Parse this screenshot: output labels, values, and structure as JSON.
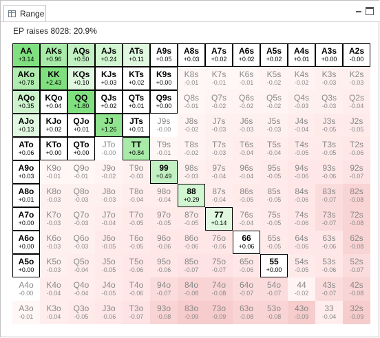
{
  "tab": {
    "title": "Range",
    "icon": "grid-window-icon"
  },
  "subtitle": "EP raises 8028: 20.9%",
  "colors": {
    "green_strong": "#80e080",
    "green_light": "#d2f5d2",
    "white": "#ffffff",
    "red_light": "#fdeeee",
    "red_mid": "#fbdcdc",
    "red_strong": "#f7cccc"
  },
  "grid": {
    "rows": [
      [
        {
          "hand": "AA",
          "ev": "+3.14",
          "full": true,
          "bg": "#80e080"
        },
        {
          "hand": "AKs",
          "ev": "+0.96",
          "full": true,
          "bg": "#a8eaa8"
        },
        {
          "hand": "AQs",
          "ev": "+0.50",
          "full": true,
          "bg": "#c2f0c2"
        },
        {
          "hand": "AJs",
          "ev": "+0.24",
          "full": true,
          "bg": "#d2f5d2"
        },
        {
          "hand": "ATs",
          "ev": "+0.11",
          "full": true,
          "bg": "#e0f8e0"
        },
        {
          "hand": "A9s",
          "ev": "+0.05",
          "full": true,
          "bg": "#ffffff"
        },
        {
          "hand": "A8s",
          "ev": "+0.03",
          "full": true,
          "bg": "#ffffff"
        },
        {
          "hand": "A7s",
          "ev": "+0.02",
          "full": true,
          "bg": "#ffffff"
        },
        {
          "hand": "A6s",
          "ev": "+0.02",
          "full": true,
          "bg": "#ffffff"
        },
        {
          "hand": "A5s",
          "ev": "+0.02",
          "full": true,
          "bg": "#ffffff"
        },
        {
          "hand": "A4s",
          "ev": "+0.01",
          "full": true,
          "bg": "#ffffff"
        },
        {
          "hand": "A3s",
          "ev": "+0.00",
          "full": true,
          "bg": "#ffffff"
        },
        {
          "hand": "A2s",
          "ev": "-0.00",
          "full": true,
          "bg": "#ffffff"
        }
      ],
      [
        {
          "hand": "AKo",
          "ev": "+0.78",
          "full": true,
          "bg": "#b0ecb0"
        },
        {
          "hand": "KK",
          "ev": "+2.43",
          "full": true,
          "bg": "#80e080"
        },
        {
          "hand": "KQs",
          "ev": "+0.10",
          "full": true,
          "bg": "#e0f8e0"
        },
        {
          "hand": "KJs",
          "ev": "+0.03",
          "full": true,
          "bg": "#ffffff"
        },
        {
          "hand": "KTs",
          "ev": "+0.02",
          "full": true,
          "bg": "#ffffff"
        },
        {
          "hand": "K9s",
          "ev": "+0.00",
          "full": true,
          "bg": "#ffffff"
        },
        {
          "hand": "K8s",
          "ev": "-0.01",
          "full": false,
          "bg": "#fff6f6"
        },
        {
          "hand": "K7s",
          "ev": "-0.01",
          "full": false,
          "bg": "#fff6f6"
        },
        {
          "hand": "K6s",
          "ev": "-0.01",
          "full": false,
          "bg": "#fff6f6"
        },
        {
          "hand": "K5s",
          "ev": "-0.02",
          "full": false,
          "bg": "#fff3f3"
        },
        {
          "hand": "K4s",
          "ev": "-0.02",
          "full": false,
          "bg": "#fff3f3"
        },
        {
          "hand": "K3s",
          "ev": "-0.03",
          "full": false,
          "bg": "#fff0f0"
        },
        {
          "hand": "K2s",
          "ev": "-0.03",
          "full": false,
          "bg": "#fff0f0"
        }
      ],
      [
        {
          "hand": "AQo",
          "ev": "+0.35",
          "full": true,
          "bg": "#ccf3cc"
        },
        {
          "hand": "KQo",
          "ev": "+0.04",
          "full": true,
          "bg": "#ffffff"
        },
        {
          "hand": "QQ",
          "ev": "+1.80",
          "full": true,
          "bg": "#80e080"
        },
        {
          "hand": "QJs",
          "ev": "+0.02",
          "full": true,
          "bg": "#ffffff"
        },
        {
          "hand": "QTs",
          "ev": "+0.01",
          "full": true,
          "bg": "#ffffff"
        },
        {
          "hand": "Q9s",
          "ev": "+0.00",
          "full": true,
          "bg": "#ffffff"
        },
        {
          "hand": "Q8s",
          "ev": "-0.01",
          "full": false,
          "bg": "#fff6f6"
        },
        {
          "hand": "Q7s",
          "ev": "-0.02",
          "full": false,
          "bg": "#fff3f3"
        },
        {
          "hand": "Q6s",
          "ev": "-0.02",
          "full": false,
          "bg": "#fff3f3"
        },
        {
          "hand": "Q5s",
          "ev": "-0.02",
          "full": false,
          "bg": "#fff3f3"
        },
        {
          "hand": "Q4s",
          "ev": "-0.03",
          "full": false,
          "bg": "#fff0f0"
        },
        {
          "hand": "Q3s",
          "ev": "-0.03",
          "full": false,
          "bg": "#fff0f0"
        },
        {
          "hand": "Q2s",
          "ev": "-0.04",
          "full": false,
          "bg": "#ffeded"
        }
      ],
      [
        {
          "hand": "AJo",
          "ev": "+0.13",
          "full": true,
          "bg": "#e0f8e0"
        },
        {
          "hand": "KJo",
          "ev": "+0.02",
          "full": true,
          "bg": "#ffffff"
        },
        {
          "hand": "QJo",
          "ev": "+0.01",
          "full": true,
          "bg": "#ffffff"
        },
        {
          "hand": "JJ",
          "ev": "+1.26",
          "full": true,
          "bg": "#90e490"
        },
        {
          "hand": "JTs",
          "ev": "+0.01",
          "full": true,
          "bg": "#ffffff"
        },
        {
          "hand": "J9s",
          "ev": "-0.00",
          "full": false,
          "bg": "#ffffff"
        },
        {
          "hand": "J8s",
          "ev": "-0.02",
          "full": false,
          "bg": "#fff3f3"
        },
        {
          "hand": "J7s",
          "ev": "-0.03",
          "full": false,
          "bg": "#fff0f0"
        },
        {
          "hand": "J6s",
          "ev": "-0.03",
          "full": false,
          "bg": "#fff0f0"
        },
        {
          "hand": "J5s",
          "ev": "-0.03",
          "full": false,
          "bg": "#fff0f0"
        },
        {
          "hand": "J4s",
          "ev": "-0.04",
          "full": false,
          "bg": "#ffeded"
        },
        {
          "hand": "J3s",
          "ev": "-0.05",
          "full": false,
          "bg": "#ffeaea"
        },
        {
          "hand": "J2s",
          "ev": "-0.05",
          "full": false,
          "bg": "#ffeaea"
        }
      ],
      [
        {
          "hand": "ATo",
          "ev": "+0.06",
          "full": true,
          "bg": "#ffffff"
        },
        {
          "hand": "KTo",
          "ev": "+0.00",
          "full": true,
          "bg": "#ffffff"
        },
        {
          "hand": "QTo",
          "ev": "+0.00",
          "full": true,
          "bg": "#ffffff"
        },
        {
          "hand": "JTo",
          "ev": "-0.00",
          "full": false,
          "bg": "#ffffff"
        },
        {
          "hand": "TT",
          "ev": "+0.84",
          "full": true,
          "bg": "#a8eaa8"
        },
        {
          "hand": "T9s",
          "ev": "-0.01",
          "full": false,
          "bg": "#fff6f6"
        },
        {
          "hand": "T8s",
          "ev": "-0.02",
          "full": false,
          "bg": "#fff3f3"
        },
        {
          "hand": "T7s",
          "ev": "-0.03",
          "full": false,
          "bg": "#fff0f0"
        },
        {
          "hand": "T6s",
          "ev": "-0.04",
          "full": false,
          "bg": "#ffeded"
        },
        {
          "hand": "T5s",
          "ev": "-0.04",
          "full": false,
          "bg": "#ffeded"
        },
        {
          "hand": "T4s",
          "ev": "-0.05",
          "full": false,
          "bg": "#ffeaea"
        },
        {
          "hand": "T3s",
          "ev": "-0.05",
          "full": false,
          "bg": "#ffeaea"
        },
        {
          "hand": "T2s",
          "ev": "-0.06",
          "full": false,
          "bg": "#ffe7e7"
        }
      ],
      [
        {
          "hand": "A9o",
          "ev": "+0.03",
          "full": true,
          "bg": "#ffffff"
        },
        {
          "hand": "K9o",
          "ev": "-0.01",
          "full": false,
          "bg": "#fff6f6"
        },
        {
          "hand": "Q9o",
          "ev": "-0.01",
          "full": false,
          "bg": "#fff6f6"
        },
        {
          "hand": "J9o",
          "ev": "-0.02",
          "full": false,
          "bg": "#fff3f3"
        },
        {
          "hand": "T9o",
          "ev": "-0.03",
          "full": false,
          "bg": "#fff0f0"
        },
        {
          "hand": "99",
          "ev": "+0.49",
          "full": true,
          "bg": "#c2f0c2"
        },
        {
          "hand": "98s",
          "ev": "-0.03",
          "full": false,
          "bg": "#fff0f0"
        },
        {
          "hand": "97s",
          "ev": "-0.04",
          "full": false,
          "bg": "#ffeded"
        },
        {
          "hand": "96s",
          "ev": "-0.04",
          "full": false,
          "bg": "#ffeded"
        },
        {
          "hand": "95s",
          "ev": "-0.05",
          "full": false,
          "bg": "#ffeaea"
        },
        {
          "hand": "94s",
          "ev": "-0.06",
          "full": false,
          "bg": "#ffe7e7"
        },
        {
          "hand": "93s",
          "ev": "-0.06",
          "full": false,
          "bg": "#ffe7e7"
        },
        {
          "hand": "92s",
          "ev": "-0.07",
          "full": false,
          "bg": "#fde3e3"
        }
      ],
      [
        {
          "hand": "A8o",
          "ev": "+0.01",
          "full": true,
          "bg": "#ffffff"
        },
        {
          "hand": "K8o",
          "ev": "-0.03",
          "full": false,
          "bg": "#fff0f0"
        },
        {
          "hand": "Q8o",
          "ev": "-0.03",
          "full": false,
          "bg": "#fff0f0"
        },
        {
          "hand": "J8o",
          "ev": "-0.03",
          "full": false,
          "bg": "#fff0f0"
        },
        {
          "hand": "T8o",
          "ev": "-0.04",
          "full": false,
          "bg": "#ffeded"
        },
        {
          "hand": "98o",
          "ev": "-0.04",
          "full": false,
          "bg": "#ffeded"
        },
        {
          "hand": "88",
          "ev": "+0.29",
          "full": true,
          "bg": "#d2f5d2"
        },
        {
          "hand": "87s",
          "ev": "-0.04",
          "full": false,
          "bg": "#ffeded"
        },
        {
          "hand": "86s",
          "ev": "-0.05",
          "full": false,
          "bg": "#ffeaea"
        },
        {
          "hand": "85s",
          "ev": "-0.05",
          "full": false,
          "bg": "#ffeaea"
        },
        {
          "hand": "84s",
          "ev": "-0.06",
          "full": false,
          "bg": "#ffe7e7"
        },
        {
          "hand": "83s",
          "ev": "-0.07",
          "full": false,
          "bg": "#fbdcdc"
        },
        {
          "hand": "82s",
          "ev": "-0.08",
          "full": false,
          "bg": "#f9d4d4"
        }
      ],
      [
        {
          "hand": "A7o",
          "ev": "+0.00",
          "full": true,
          "bg": "#ffffff"
        },
        {
          "hand": "K7o",
          "ev": "-0.03",
          "full": false,
          "bg": "#fff0f0"
        },
        {
          "hand": "Q7o",
          "ev": "-0.03",
          "full": false,
          "bg": "#fff0f0"
        },
        {
          "hand": "J7o",
          "ev": "-0.04",
          "full": false,
          "bg": "#ffeded"
        },
        {
          "hand": "T7o",
          "ev": "-0.05",
          "full": false,
          "bg": "#ffeaea"
        },
        {
          "hand": "97o",
          "ev": "-0.05",
          "full": false,
          "bg": "#ffeaea"
        },
        {
          "hand": "87o",
          "ev": "-0.05",
          "full": false,
          "bg": "#ffeaea"
        },
        {
          "hand": "77",
          "ev": "+0.14",
          "full": true,
          "bg": "#e0f8e0"
        },
        {
          "hand": "76s",
          "ev": "-0.04",
          "full": false,
          "bg": "#ffeded"
        },
        {
          "hand": "75s",
          "ev": "-0.05",
          "full": false,
          "bg": "#ffeaea"
        },
        {
          "hand": "74s",
          "ev": "-0.06",
          "full": false,
          "bg": "#ffe7e7"
        },
        {
          "hand": "73s",
          "ev": "-0.07",
          "full": false,
          "bg": "#fbdcdc"
        },
        {
          "hand": "72s",
          "ev": "-0.08",
          "full": false,
          "bg": "#f9d4d4"
        }
      ],
      [
        {
          "hand": "A6o",
          "ev": "+0.00",
          "full": true,
          "bg": "#ffffff"
        },
        {
          "hand": "K6o",
          "ev": "-0.03",
          "full": false,
          "bg": "#fff0f0"
        },
        {
          "hand": "Q6o",
          "ev": "-0.03",
          "full": false,
          "bg": "#fff0f0"
        },
        {
          "hand": "J6o",
          "ev": "-0.05",
          "full": false,
          "bg": "#ffeaea"
        },
        {
          "hand": "T6o",
          "ev": "-0.05",
          "full": false,
          "bg": "#ffeaea"
        },
        {
          "hand": "96o",
          "ev": "-0.06",
          "full": false,
          "bg": "#ffe7e7"
        },
        {
          "hand": "86o",
          "ev": "-0.06",
          "full": false,
          "bg": "#ffe7e7"
        },
        {
          "hand": "76o",
          "ev": "-0.06",
          "full": false,
          "bg": "#ffe7e7"
        },
        {
          "hand": "66",
          "ev": "+0.06",
          "full": true,
          "bg": "#ffffff"
        },
        {
          "hand": "65s",
          "ev": "-0.05",
          "full": false,
          "bg": "#ffeaea"
        },
        {
          "hand": "64s",
          "ev": "-0.06",
          "full": false,
          "bg": "#ffe7e7"
        },
        {
          "hand": "63s",
          "ev": "-0.06",
          "full": false,
          "bg": "#ffe7e7"
        },
        {
          "hand": "62s",
          "ev": "-0.08",
          "full": false,
          "bg": "#f9d4d4"
        }
      ],
      [
        {
          "hand": "A5o",
          "ev": "+0.00",
          "full": true,
          "bg": "#ffffff"
        },
        {
          "hand": "K5o",
          "ev": "-0.03",
          "full": false,
          "bg": "#fff0f0"
        },
        {
          "hand": "Q5o",
          "ev": "-0.04",
          "full": false,
          "bg": "#ffeded"
        },
        {
          "hand": "J5o",
          "ev": "-0.05",
          "full": false,
          "bg": "#ffeaea"
        },
        {
          "hand": "T5o",
          "ev": "-0.06",
          "full": false,
          "bg": "#ffe7e7"
        },
        {
          "hand": "95o",
          "ev": "-0.06",
          "full": false,
          "bg": "#ffe7e7"
        },
        {
          "hand": "85o",
          "ev": "-0.07",
          "full": false,
          "bg": "#fde3e3"
        },
        {
          "hand": "75o",
          "ev": "-0.07",
          "full": false,
          "bg": "#fde3e3"
        },
        {
          "hand": "65o",
          "ev": "-0.06",
          "full": false,
          "bg": "#ffe7e7"
        },
        {
          "hand": "55",
          "ev": "+0.00",
          "full": true,
          "bg": "#ffffff"
        },
        {
          "hand": "54s",
          "ev": "-0.05",
          "full": false,
          "bg": "#ffeaea"
        },
        {
          "hand": "53s",
          "ev": "-0.06",
          "full": false,
          "bg": "#ffe7e7"
        },
        {
          "hand": "52s",
          "ev": "-0.07",
          "full": false,
          "bg": "#fbdcdc"
        }
      ],
      [
        {
          "hand": "A4o",
          "ev": "-0.00",
          "full": false,
          "bg": "#ffffff"
        },
        {
          "hand": "K4o",
          "ev": "-0.04",
          "full": false,
          "bg": "#ffeded"
        },
        {
          "hand": "Q4o",
          "ev": "-0.04",
          "full": false,
          "bg": "#ffeded"
        },
        {
          "hand": "J4o",
          "ev": "-0.05",
          "full": false,
          "bg": "#ffeaea"
        },
        {
          "hand": "T4o",
          "ev": "-0.06",
          "full": false,
          "bg": "#ffe7e7"
        },
        {
          "hand": "94o",
          "ev": "-0.07",
          "full": false,
          "bg": "#fbdcdc"
        },
        {
          "hand": "84o",
          "ev": "-0.08",
          "full": false,
          "bg": "#f9d4d4"
        },
        {
          "hand": "74o",
          "ev": "-0.08",
          "full": false,
          "bg": "#f9d4d4"
        },
        {
          "hand": "64o",
          "ev": "-0.07",
          "full": false,
          "bg": "#fbdcdc"
        },
        {
          "hand": "54o",
          "ev": "-0.07",
          "full": false,
          "bg": "#fbdcdc"
        },
        {
          "hand": "44",
          "ev": "-0.02",
          "full": false,
          "bg": "#fff3f3"
        },
        {
          "hand": "43s",
          "ev": "-0.07",
          "full": false,
          "bg": "#fbdcdc"
        },
        {
          "hand": "42s",
          "ev": "-0.08",
          "full": false,
          "bg": "#f9d4d4"
        }
      ],
      [
        {
          "hand": "A3o",
          "ev": "-0.01",
          "full": false,
          "bg": "#fff6f6"
        },
        {
          "hand": "K3o",
          "ev": "-0.04",
          "full": false,
          "bg": "#ffeded"
        },
        {
          "hand": "Q3o",
          "ev": "-0.05",
          "full": false,
          "bg": "#ffeaea"
        },
        {
          "hand": "J3o",
          "ev": "-0.06",
          "full": false,
          "bg": "#ffe7e7"
        },
        {
          "hand": "T3o",
          "ev": "-0.07",
          "full": false,
          "bg": "#fde3e3"
        },
        {
          "hand": "93o",
          "ev": "-0.08",
          "full": false,
          "bg": "#f9d4d4"
        },
        {
          "hand": "83o",
          "ev": "-0.09",
          "full": false,
          "bg": "#f7cccc"
        },
        {
          "hand": "73o",
          "ev": "-0.09",
          "full": false,
          "bg": "#f7cccc"
        },
        {
          "hand": "63o",
          "ev": "-0.08",
          "full": false,
          "bg": "#f9d4d4"
        },
        {
          "hand": "53o",
          "ev": "-0.08",
          "full": false,
          "bg": "#f9d4d4"
        },
        {
          "hand": "43o",
          "ev": "-0.09",
          "full": false,
          "bg": "#f7cccc"
        },
        {
          "hand": "33",
          "ev": "-0.04",
          "full": false,
          "bg": "#ffeded"
        },
        {
          "hand": "32s",
          "ev": "-0.09",
          "full": false,
          "bg": "#f7cccc"
        }
      ]
    ]
  }
}
